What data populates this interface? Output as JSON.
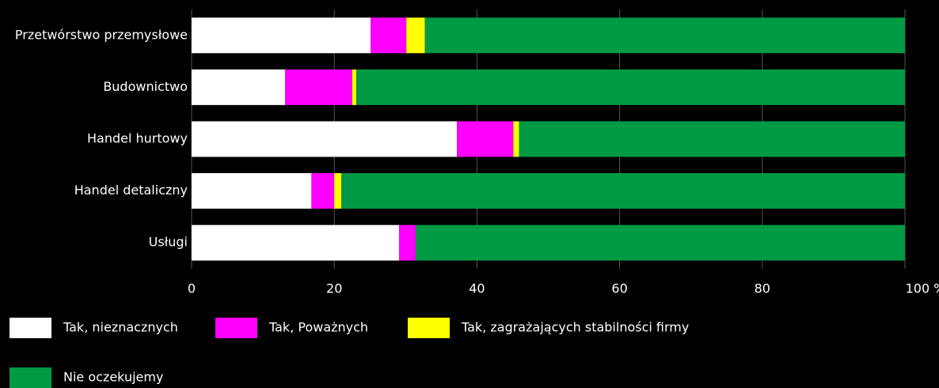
{
  "chart_data": {
    "type": "stacked_barh",
    "categories": [
      "Przetwórstwo przemysłowe",
      "Budownictwo",
      "Handel hurtowy",
      "Handel detaliczny",
      "Usługi"
    ],
    "series": [
      {
        "name": "Tak, nieznacznych",
        "color": "#ffffff",
        "values": [
          25.1,
          13.1,
          37.2,
          16.8,
          29.1
        ]
      },
      {
        "name": "Tak, Poważnych",
        "color": "#ff00ff",
        "values": [
          5.0,
          9.4,
          7.9,
          3.2,
          2.3
        ]
      },
      {
        "name": "Tak, zagrażających stabilności firmy",
        "color": "#ffff00",
        "values": [
          2.6,
          0.6,
          0.8,
          1.0,
          0
        ]
      },
      {
        "name": "Nie oczekujemy",
        "color": "#009a44",
        "values": [
          67.3,
          76.9,
          54.1,
          79.0,
          68.6
        ]
      }
    ],
    "xlim": [
      0,
      100
    ],
    "xticks": [
      0,
      20,
      40,
      60,
      80,
      {
        "value": 100,
        "label": "100 %"
      }
    ],
    "grid": true
  }
}
